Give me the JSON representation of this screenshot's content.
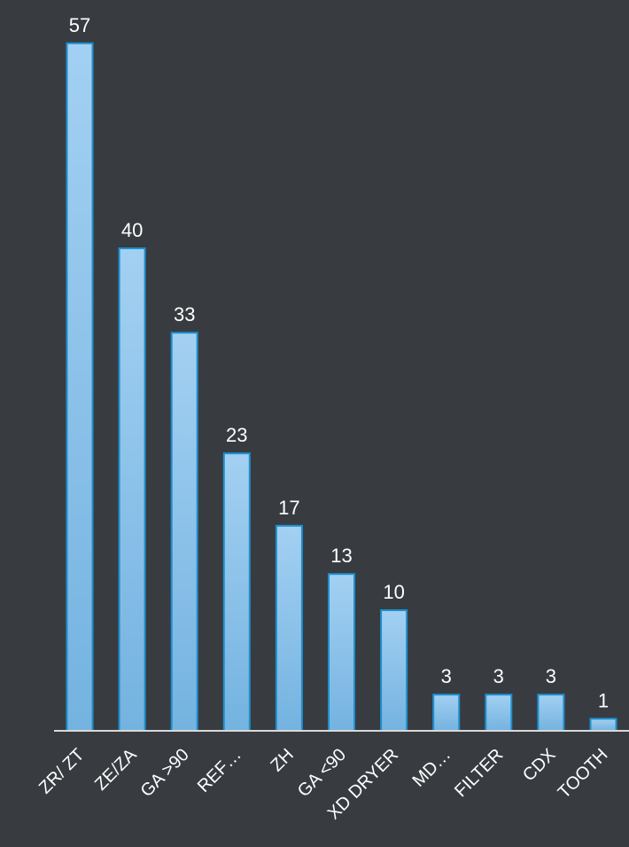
{
  "colors": {
    "background": "#383c40",
    "bar_fill_top": "#a3d0f2",
    "bar_fill_bottom": "#74b3e0",
    "bar_stroke": "#1f8fcf",
    "axis": "#d9d9d9",
    "text": "#ffffff"
  },
  "chart_data": {
    "type": "bar",
    "categories": [
      "ZR/ ZT",
      "ZE/ZA",
      "GA >90",
      "REF…",
      "ZH",
      "GA <90",
      "XD DRYER",
      "MD…",
      "FILTER",
      "CDX",
      "TOOTH"
    ],
    "values": [
      57,
      40,
      33,
      23,
      17,
      13,
      10,
      3,
      3,
      3,
      1
    ],
    "data_labels": [
      "57",
      "40",
      "33",
      "23",
      "17",
      "13",
      "10",
      "3",
      "3",
      "3",
      "1"
    ],
    "title": "",
    "xlabel": "",
    "ylabel": "",
    "ylim": [
      0,
      60
    ],
    "grid": false,
    "legend": "none"
  }
}
